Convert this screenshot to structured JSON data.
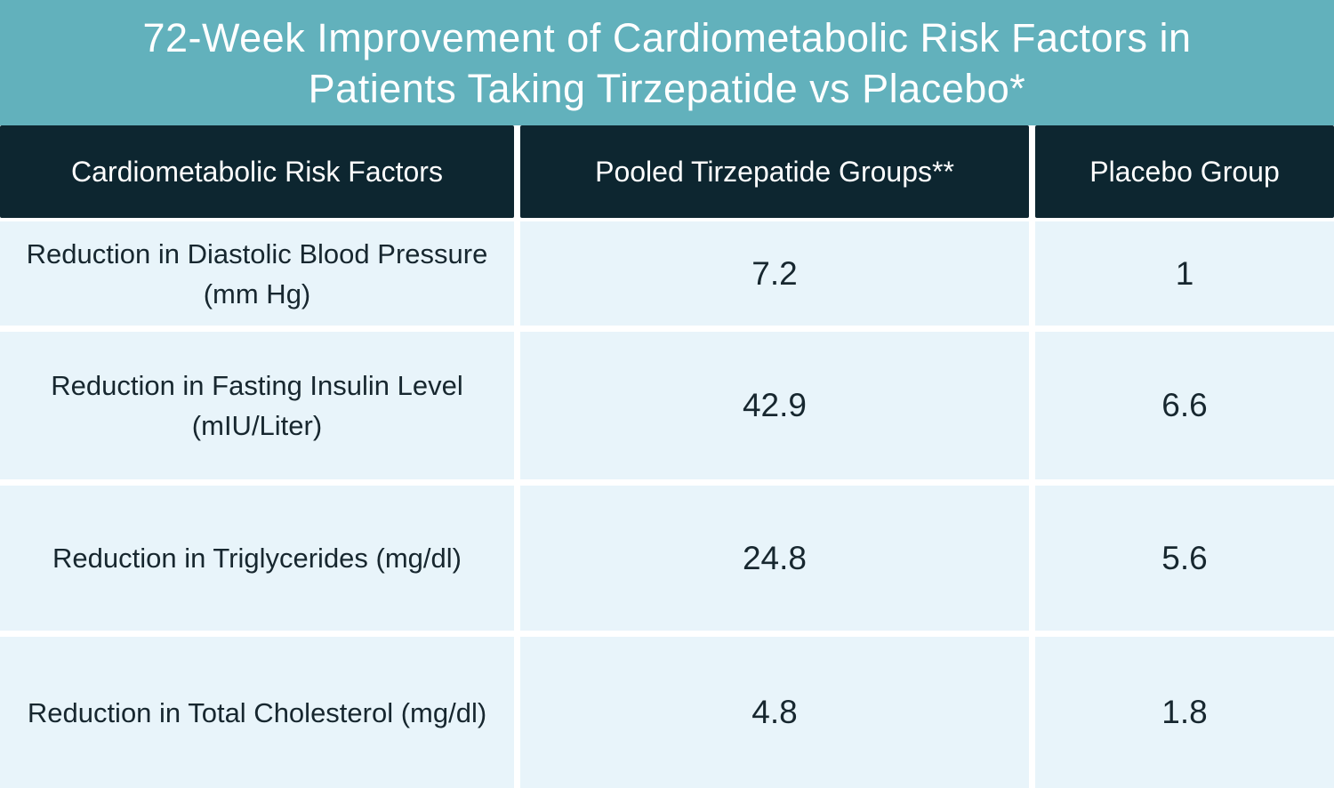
{
  "colors": {
    "banner_teal": "#62b1bc",
    "header_navy": "#0d2630",
    "cell_light_blue": "#e8f4fa",
    "divider_white": "#ffffff",
    "text_dark": "#17272f",
    "text_white": "#ffffff"
  },
  "title": {
    "line1": "72-Week Improvement of Cardiometabolic Risk Factors in",
    "line2": "Patients Taking Tirzepatide vs Placebo*"
  },
  "table": {
    "headers": [
      "Cardiometabolic Risk Factors",
      "Pooled Tirzepatide Groups**",
      "Placebo Group"
    ],
    "rows": [
      {
        "factor": "Reduction in Diastolic Blood Pressure (mm Hg)",
        "tirzepatide": "7.2",
        "placebo": "1"
      },
      {
        "factor": "Reduction in Fasting Insulin Level (mIU/Liter)",
        "tirzepatide": "42.9",
        "placebo": "6.6"
      },
      {
        "factor": "Reduction in Triglycerides (mg/dl)",
        "tirzepatide": "24.8",
        "placebo": "5.6"
      },
      {
        "factor": "Reduction in Total Cholesterol (mg/dl)",
        "tirzepatide": "4.8",
        "placebo": "1.8"
      }
    ]
  },
  "chart_data": {
    "type": "table",
    "title": "72-Week Improvement of Cardiometabolic Risk Factors in Patients Taking Tirzepatide vs Placebo*",
    "columns": [
      "Cardiometabolic Risk Factors",
      "Pooled Tirzepatide Groups**",
      "Placebo Group"
    ],
    "rows": [
      [
        "Reduction in Diastolic Blood Pressure (mm Hg)",
        7.2,
        1
      ],
      [
        "Reduction in Fasting Insulin Level (mIU/Liter)",
        42.9,
        6.6
      ],
      [
        "Reduction in Triglycerides (mg/dl)",
        24.8,
        5.6
      ],
      [
        "Reduction in Total Cholesterol (mg/dl)",
        4.8,
        1.8
      ]
    ]
  }
}
